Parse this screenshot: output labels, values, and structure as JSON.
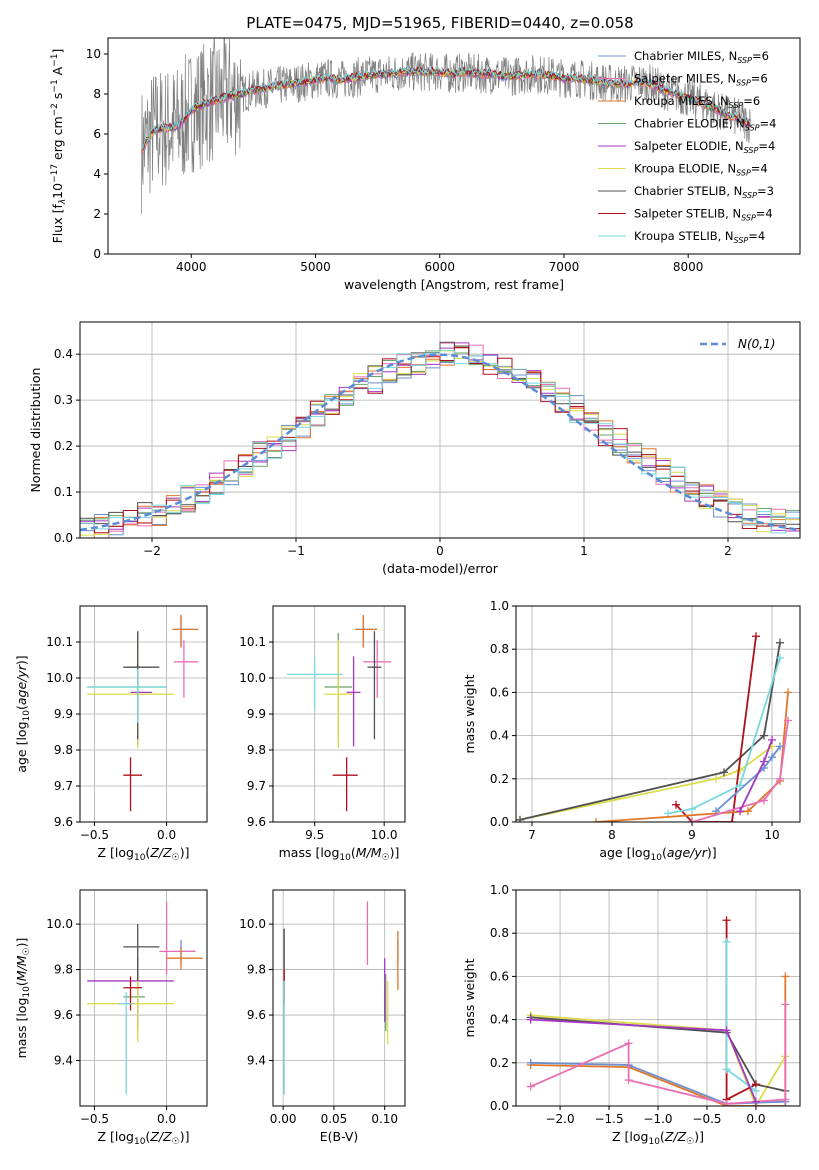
{
  "figure_title": "PLATE=0475, MJD=51965, FIBERID=0440, z=0.058",
  "colors": {
    "Chabrier MILES": "#6c8fcf",
    "Salpeter MILES": "#e86fb5",
    "Kroupa MILES": "#e0782c",
    "Chabrier ELODIE": "#6aa56a",
    "Salpeter ELODIE": "#a637c4",
    "Kroupa ELODIE": "#dcdc4c",
    "Chabrier STELIB": "#505050",
    "Salpeter STELIB": "#b0101a",
    "Kroupa STELIB": "#78d8e0",
    "data": "#7f7f7f",
    "normal": "#5b8bd8"
  },
  "chart_data": [
    {
      "type": "line",
      "title": "PLATE=0475, MJD=51965, FIBERID=0440, z=0.058",
      "xlabel": "wavelength [Angstrom, rest frame]",
      "ylabel": "Flux [fλ10^-17 erg cm^-2 s^-1 A^-1]",
      "xlim": [
        3330,
        8900
      ],
      "ylim": [
        0,
        10.8
      ],
      "xticks": [
        4000,
        5000,
        6000,
        7000,
        8000
      ],
      "yticks": [
        0,
        2,
        4,
        6,
        8,
        10
      ],
      "grid": false,
      "legend_position": "top-right",
      "legend": [
        "Chabrier MILES, NSSP=6",
        "Salpeter MILES, NSSP=6",
        "Kroupa MILES, NSSP=6",
        "Chabrier ELODIE, NSSP=4",
        "Salpeter ELODIE, NSSP=4",
        "Kroupa ELODIE, NSSP=4",
        "Chabrier STELIB, NSSP=3",
        "Salpeter STELIB, NSSP=4",
        "Kroupa STELIB, NSSP=4"
      ],
      "spectrum": {
        "x": [
          3600,
          3700,
          3800,
          3900,
          4000,
          4100,
          4200,
          4300,
          4400,
          4500,
          4600,
          4700,
          4800,
          4900,
          5000,
          5100,
          5200,
          5300,
          5400,
          5500,
          5600,
          5700,
          5800,
          5900,
          6000,
          6100,
          6200,
          6300,
          6400,
          6500,
          6600,
          6700,
          6800,
          6900,
          7000,
          7100,
          7200,
          7300,
          7400,
          7500,
          7600,
          7700,
          7800,
          7900,
          8000,
          8100,
          8200,
          8300,
          8400,
          8500
        ],
        "y": [
          5.2,
          6.2,
          6.3,
          6.4,
          7.2,
          7.5,
          7.7,
          7.9,
          8.0,
          8.2,
          8.3,
          8.4,
          8.5,
          8.6,
          8.7,
          8.8,
          8.7,
          8.8,
          8.9,
          9.0,
          9.0,
          9.1,
          9.1,
          9.1,
          9.1,
          9.0,
          9.1,
          9.0,
          9.0,
          8.9,
          8.9,
          9.0,
          9.0,
          8.9,
          8.8,
          8.8,
          8.7,
          8.6,
          8.5,
          8.5,
          8.6,
          8.5,
          8.2,
          8.0,
          7.8,
          7.6,
          7.3,
          7.0,
          6.8,
          6.5
        ]
      }
    },
    {
      "type": "histogram",
      "xlabel": "(data-model)/error",
      "ylabel": "Normed distribution",
      "xlim": [
        -2.5,
        2.5
      ],
      "ylim": [
        0,
        0.47
      ],
      "xticks": [
        -2,
        -1,
        0,
        1,
        2
      ],
      "yticks": [
        0.0,
        0.1,
        0.2,
        0.3,
        0.4
      ],
      "grid": true,
      "legend_position": "top-right",
      "legend": [
        "N(0,1)"
      ],
      "bin_edges": [
        -2.5,
        -2.4,
        -2.3,
        -2.2,
        -2.1,
        -2.0,
        -1.9,
        -1.8,
        -1.7,
        -1.6,
        -1.5,
        -1.4,
        -1.3,
        -1.2,
        -1.1,
        -1.0,
        -0.9,
        -0.8,
        -0.7,
        -0.6,
        -0.5,
        -0.4,
        -0.3,
        -0.2,
        -0.1,
        0.0,
        0.1,
        0.2,
        0.3,
        0.4,
        0.5,
        0.6,
        0.7,
        0.8,
        0.9,
        1.0,
        1.1,
        1.2,
        1.3,
        1.4,
        1.5,
        1.6,
        1.7,
        1.8,
        1.9,
        2.0,
        2.1,
        2.2,
        2.3,
        2.4,
        2.5
      ],
      "density": [
        0.02,
        0.025,
        0.03,
        0.04,
        0.05,
        0.055,
        0.07,
        0.085,
        0.1,
        0.12,
        0.14,
        0.16,
        0.18,
        0.2,
        0.22,
        0.245,
        0.27,
        0.29,
        0.31,
        0.33,
        0.345,
        0.36,
        0.375,
        0.385,
        0.395,
        0.4,
        0.4,
        0.395,
        0.385,
        0.37,
        0.355,
        0.34,
        0.32,
        0.3,
        0.28,
        0.255,
        0.23,
        0.21,
        0.19,
        0.165,
        0.145,
        0.125,
        0.105,
        0.09,
        0.075,
        0.06,
        0.05,
        0.04,
        0.035,
        0.03
      ]
    },
    {
      "type": "scatter",
      "xlabel": "Z [log10(Z/Z☉)]",
      "ylabel": "age [log10(age/yr)]",
      "xlim": [
        -0.6,
        0.28
      ],
      "ylim": [
        9.6,
        10.2
      ],
      "xticks": [
        -0.5,
        0.0
      ],
      "yticks": [
        9.6,
        9.7,
        9.8,
        9.9,
        10.0,
        10.1
      ],
      "grid": true,
      "points": [
        {
          "model": "Chabrier MILES",
          "x": 0.1,
          "y": 10.135,
          "xerr": [
            0.05,
            0.1
          ],
          "yerr": [
            0.05,
            0.04
          ]
        },
        {
          "model": "Salpeter MILES",
          "x": 0.12,
          "y": 10.045,
          "xerr": [
            0.07,
            0.1
          ],
          "yerr": [
            0.1,
            0.06
          ]
        },
        {
          "model": "Kroupa MILES",
          "x": 0.1,
          "y": 10.135,
          "xerr": [
            0.06,
            0.12
          ],
          "yerr": [
            0.05,
            0.04
          ]
        },
        {
          "model": "Chabrier ELODIE",
          "x": -0.2,
          "y": 9.975,
          "xerr": [
            0.35,
            0.2
          ],
          "yerr": [
            0.15,
            0.15
          ]
        },
        {
          "model": "Salpeter ELODIE",
          "x": -0.2,
          "y": 9.96,
          "xerr": [
            0.05,
            0.1
          ],
          "yerr": [
            0.15,
            0.1
          ]
        },
        {
          "model": "Kroupa ELODIE",
          "x": -0.2,
          "y": 9.955,
          "xerr": [
            0.35,
            0.25
          ],
          "yerr": [
            0.15,
            0.15
          ]
        },
        {
          "model": "Chabrier STELIB",
          "x": -0.2,
          "y": 10.03,
          "xerr": [
            0.1,
            0.15
          ],
          "yerr": [
            0.2,
            0.1
          ]
        },
        {
          "model": "Salpeter STELIB",
          "x": -0.25,
          "y": 9.73,
          "xerr": [
            0.05,
            0.08
          ],
          "yerr": [
            0.1,
            0.05
          ]
        },
        {
          "model": "Kroupa STELIB",
          "x": -0.2,
          "y": 9.975,
          "xerr": [
            0.35,
            0.2
          ],
          "yerr": [
            0.1,
            0.05
          ]
        }
      ]
    },
    {
      "type": "scatter",
      "xlabel": "mass [log10(M/M☉)]",
      "ylabel": "",
      "xlim": [
        9.2,
        10.15
      ],
      "ylim": [
        9.6,
        10.2
      ],
      "xticks": [
        9.5,
        10.0
      ],
      "yticks": [
        9.6,
        9.7,
        9.8,
        9.9,
        10.0,
        10.1
      ],
      "grid": true,
      "points": [
        {
          "model": "Chabrier MILES",
          "x": 9.85,
          "y": 10.135,
          "xerr": [
            0.05,
            0.1
          ],
          "yerr": [
            0.05,
            0.04
          ]
        },
        {
          "model": "Salpeter MILES",
          "x": 9.95,
          "y": 10.045,
          "xerr": [
            0.1,
            0.1
          ],
          "yerr": [
            0.1,
            0.06
          ]
        },
        {
          "model": "Kroupa MILES",
          "x": 9.85,
          "y": 10.135,
          "xerr": [
            0.06,
            0.1
          ],
          "yerr": [
            0.05,
            0.04
          ]
        },
        {
          "model": "Chabrier ELODIE",
          "x": 9.67,
          "y": 9.975,
          "xerr": [
            0.1,
            0.1
          ],
          "yerr": [
            0.15,
            0.15
          ]
        },
        {
          "model": "Salpeter ELODIE",
          "x": 9.78,
          "y": 9.96,
          "xerr": [
            0.05,
            0.05
          ],
          "yerr": [
            0.15,
            0.1
          ]
        },
        {
          "model": "Kroupa ELODIE",
          "x": 9.67,
          "y": 9.955,
          "xerr": [
            0.1,
            0.1
          ],
          "yerr": [
            0.15,
            0.15
          ]
        },
        {
          "model": "Chabrier STELIB",
          "x": 9.93,
          "y": 10.03,
          "xerr": [
            0.05,
            0.05
          ],
          "yerr": [
            0.2,
            0.1
          ]
        },
        {
          "model": "Salpeter STELIB",
          "x": 9.73,
          "y": 9.73,
          "xerr": [
            0.1,
            0.08
          ],
          "yerr": [
            0.1,
            0.05
          ]
        },
        {
          "model": "Kroupa STELIB",
          "x": 9.5,
          "y": 10.01,
          "xerr": [
            0.2,
            0.2
          ],
          "yerr": [
            0.1,
            0.05
          ]
        }
      ]
    },
    {
      "type": "line",
      "xlabel": "age [log10(age/yr)]",
      "ylabel": "mass weight",
      "xlim": [
        6.8,
        10.35
      ],
      "ylim": [
        0,
        1.0
      ],
      "xticks": [
        7,
        8,
        9,
        10
      ],
      "yticks": [
        0.0,
        0.2,
        0.4,
        0.6,
        0.8,
        1.0
      ],
      "grid": true,
      "series": [
        {
          "model": "Kroupa ELODIE",
          "x": [
            6.85,
            9.3,
            9.6,
            10.0
          ],
          "y": [
            0.01,
            0.2,
            0.24,
            0.35
          ]
        },
        {
          "model": "Chabrier STELIB",
          "x": [
            6.85,
            9.4,
            9.9,
            10.1
          ],
          "y": [
            0.01,
            0.23,
            0.4,
            0.83
          ]
        },
        {
          "model": "Salpeter STELIB",
          "x": [
            8.8,
            9.0,
            9.5,
            9.8
          ],
          "y": [
            0.08,
            0.0,
            0.0,
            0.86
          ]
        },
        {
          "model": "Kroupa STELIB",
          "x": [
            8.7,
            9.0,
            9.6,
            10.1
          ],
          "y": [
            0.04,
            0.06,
            0.17,
            0.76
          ]
        },
        {
          "model": "Kroupa MILES",
          "x": [
            7.8,
            9.7,
            10.1,
            10.2
          ],
          "y": [
            0.0,
            0.05,
            0.19,
            0.6
          ]
        },
        {
          "model": "Salpeter MILES",
          "x": [
            9.0,
            9.9,
            10.1,
            10.2
          ],
          "y": [
            0.0,
            0.1,
            0.2,
            0.47
          ]
        },
        {
          "model": "Chabrier MILES",
          "x": [
            9.3,
            9.9,
            10.0,
            10.1
          ],
          "y": [
            0.05,
            0.25,
            0.3,
            0.35
          ]
        },
        {
          "model": "Salpeter ELODIE",
          "x": [
            9.6,
            9.9,
            10.0
          ],
          "y": [
            0.05,
            0.28,
            0.38
          ]
        }
      ]
    },
    {
      "type": "scatter",
      "xlabel": "Z [log10(Z/Z☉)]",
      "ylabel": "mass [log10(M/M☉)]",
      "xlim": [
        -0.6,
        0.28
      ],
      "ylim": [
        9.2,
        10.15
      ],
      "xticks": [
        -0.5,
        0.0
      ],
      "yticks": [
        9.4,
        9.6,
        9.8,
        10.0
      ],
      "grid": true,
      "points": [
        {
          "model": "Chabrier MILES",
          "x": 0.1,
          "y": 9.88,
          "xerr": [
            0.05,
            0.1
          ],
          "yerr": [
            0.05,
            0.05
          ]
        },
        {
          "model": "Salpeter MILES",
          "x": 0.0,
          "y": 9.88,
          "xerr": [
            0.05,
            0.2
          ],
          "yerr": [
            0.1,
            0.22
          ]
        },
        {
          "model": "Kroupa MILES",
          "x": 0.1,
          "y": 9.85,
          "xerr": [
            0.1,
            0.15
          ],
          "yerr": [
            0.05,
            0.05
          ]
        },
        {
          "model": "Chabrier ELODIE",
          "x": -0.2,
          "y": 9.68,
          "xerr": [
            0.1,
            0.05
          ],
          "yerr": [
            0.15,
            0.1
          ]
        },
        {
          "model": "Salpeter ELODIE",
          "x": -0.2,
          "y": 9.75,
          "xerr": [
            0.35,
            0.25
          ],
          "yerr": [
            0.2,
            0.1
          ]
        },
        {
          "model": "Kroupa ELODIE",
          "x": -0.2,
          "y": 9.65,
          "xerr": [
            0.35,
            0.25
          ],
          "yerr": [
            0.17,
            0.1
          ]
        },
        {
          "model": "Chabrier STELIB",
          "x": -0.2,
          "y": 9.9,
          "xerr": [
            0.1,
            0.15
          ],
          "yerr": [
            0.15,
            0.1
          ]
        },
        {
          "model": "Salpeter STELIB",
          "x": -0.25,
          "y": 9.72,
          "xerr": [
            0.05,
            0.08
          ],
          "yerr": [
            0.1,
            0.05
          ]
        },
        {
          "model": "Kroupa STELIB",
          "x": -0.28,
          "y": 9.65,
          "xerr": [
            0.05,
            0.05
          ],
          "yerr": [
            0.4,
            0.05
          ]
        }
      ]
    },
    {
      "type": "scatter",
      "xlabel": "E(B-V)",
      "ylabel": "",
      "xlim": [
        -0.01,
        0.12
      ],
      "ylim": [
        9.2,
        10.15
      ],
      "xticks": [
        0.0,
        0.05,
        0.1
      ],
      "yticks": [
        9.4,
        9.6,
        9.8,
        10.0
      ],
      "grid": true,
      "points": [
        {
          "model": "Chabrier MILES",
          "x": 0.113,
          "y": 9.88,
          "xerr": [
            0,
            0
          ],
          "yerr": [
            0.05,
            0.05
          ]
        },
        {
          "model": "Salpeter MILES",
          "x": 0.083,
          "y": 9.96,
          "xerr": [
            0,
            0
          ],
          "yerr": [
            0.14,
            0.14
          ]
        },
        {
          "model": "Kroupa MILES",
          "x": 0.113,
          "y": 9.85,
          "xerr": [
            0,
            0
          ],
          "yerr": [
            0.14,
            0.12
          ]
        },
        {
          "model": "Chabrier ELODIE",
          "x": 0.101,
          "y": 9.68,
          "xerr": [
            0,
            0
          ],
          "yerr": [
            0.15,
            0.1
          ]
        },
        {
          "model": "Salpeter ELODIE",
          "x": 0.1,
          "y": 9.75,
          "xerr": [
            0,
            0
          ],
          "yerr": [
            0.18,
            0.1
          ]
        },
        {
          "model": "Kroupa ELODIE",
          "x": 0.103,
          "y": 9.65,
          "xerr": [
            0,
            0
          ],
          "yerr": [
            0.18,
            0.1
          ]
        },
        {
          "model": "Chabrier STELIB",
          "x": 0.001,
          "y": 9.86,
          "xerr": [
            0,
            0
          ],
          "yerr": [
            0.1,
            0.12
          ]
        },
        {
          "model": "Salpeter STELIB",
          "x": 0.001,
          "y": 9.75,
          "xerr": [
            0,
            0
          ],
          "yerr": [
            0.1,
            0.05
          ]
        },
        {
          "model": "Kroupa STELIB",
          "x": 0.001,
          "y": 9.5,
          "xerr": [
            0,
            0
          ],
          "yerr": [
            0.25,
            0.25
          ]
        }
      ]
    },
    {
      "type": "line",
      "xlabel": "Z [log10(Z/Z☉)]",
      "ylabel": "mass weight",
      "xlim": [
        -2.45,
        0.45
      ],
      "ylim": [
        0,
        1.0
      ],
      "xticks": [
        -2.0,
        -1.5,
        -1.0,
        -0.5,
        0.0
      ],
      "yticks": [
        0.0,
        0.2,
        0.4,
        0.6,
        0.8,
        1.0
      ],
      "grid": true,
      "series": [
        {
          "model": "Kroupa ELODIE",
          "x": [
            -2.3,
            -0.3,
            0.0,
            0.3
          ],
          "y": [
            0.42,
            0.35,
            0.0,
            0.23
          ]
        },
        {
          "model": "Chabrier STELIB",
          "x": [
            -2.3,
            -0.3,
            0.0,
            0.3
          ],
          "y": [
            0.41,
            0.34,
            0.1,
            0.07
          ]
        },
        {
          "model": "Salpeter STELIB",
          "x": [
            -0.3,
            -0.3,
            0.0
          ],
          "y": [
            0.86,
            0.03,
            0.1
          ]
        },
        {
          "model": "Kroupa STELIB",
          "x": [
            -0.3,
            -0.3,
            0.0
          ],
          "y": [
            0.76,
            0.17,
            0.07
          ]
        },
        {
          "model": "Kroupa MILES",
          "x": [
            -2.3,
            -1.3,
            -0.3,
            0.3,
            0.3
          ],
          "y": [
            0.19,
            0.18,
            0.0,
            0.0,
            0.6
          ]
        },
        {
          "model": "Chabrier MILES",
          "x": [
            -2.3,
            -1.3,
            -0.3,
            0.3
          ],
          "y": [
            0.2,
            0.19,
            0.01,
            0.02
          ]
        },
        {
          "model": "Salpeter MILES",
          "x": [
            -2.3,
            -1.3,
            -1.3,
            -0.3,
            0.3,
            0.3
          ],
          "y": [
            0.09,
            0.29,
            0.12,
            0.01,
            0.03,
            0.47
          ]
        },
        {
          "model": "Salpeter ELODIE",
          "x": [
            -2.3,
            -0.3,
            0.0
          ],
          "y": [
            0.4,
            0.35,
            0.02
          ]
        }
      ]
    }
  ]
}
